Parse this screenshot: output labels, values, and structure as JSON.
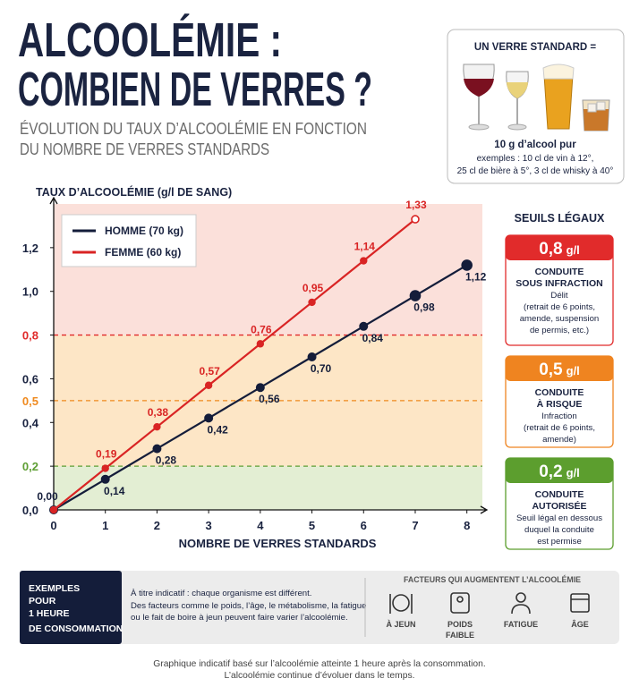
{
  "header": {
    "title_lines": [
      "ALCOOLÉMIE :",
      "COMBIEN DE VERRES ?"
    ],
    "subtitle_lines": [
      "ÉVOLUTION DU TAUX D’ALCOOLÉMIE EN FONCTION",
      "DU NOMBRE DE VERRES STANDARDS"
    ]
  },
  "standard_drink": {
    "title": "UN VERRE STANDARD =",
    "amount": "10 g d’alcool pur",
    "examples": [
      "exemples : 10 cl de vin à 12°,",
      "25 cl de bière à 5°, 3 cl de whisky à 40°"
    ]
  },
  "chart_data": {
    "type": "line",
    "y_label": "TAUX D’ALCOOLÉMIE (g/l DE SANG)",
    "x_label": "NOMBRE DE VERRES STANDARDS",
    "x": [
      0,
      1,
      2,
      3,
      4,
      5,
      6,
      7,
      8
    ],
    "series": [
      {
        "name": "HOMME (70 kg)",
        "color": "#141d3a",
        "values": [
          0,
          0.14,
          0.28,
          0.42,
          0.56,
          0.7,
          0.84,
          0.98,
          1.12
        ],
        "value_labels": [
          "0,00",
          "0,14",
          "0,28",
          "0,42",
          "0,56",
          "0,70",
          "0,84",
          "0,98",
          "1,12"
        ]
      },
      {
        "name": "FEMME (60 kg)",
        "color": "#d92424",
        "values": [
          0,
          0.19,
          0.38,
          0.57,
          0.76,
          0.95,
          1.14,
          1.33,
          null
        ],
        "value_labels": [
          null,
          "0,19",
          "0,38",
          "0,57",
          "0,76",
          "0,95",
          "1,14",
          "1,33",
          null
        ]
      }
    ],
    "xlim": [
      0,
      8.3
    ],
    "xticks": [
      0,
      1,
      2,
      3,
      4,
      5,
      6,
      7,
      8
    ],
    "ylim": [
      0,
      1.4
    ],
    "yticks": [
      {
        "value": 0,
        "label": "0,0"
      },
      {
        "value": 0.2,
        "label": "0,2"
      },
      {
        "value": 0.4,
        "label": "0,4"
      },
      {
        "value": 0.5,
        "label": "0,5"
      },
      {
        "value": 0.6,
        "label": "0,6"
      },
      {
        "value": 0.8,
        "label": "0,8"
      },
      {
        "value": 1.0,
        "label": "1,0"
      },
      {
        "value": 1.2,
        "label": "1,2"
      }
    ],
    "legend": "top-left",
    "thresholds": [
      {
        "value": 0.2,
        "color": "#5e9e34",
        "band": "#e3eed3"
      },
      {
        "value": 0.5,
        "color": "#ef8a1f",
        "band": "#fde6c6"
      },
      {
        "value": 0.8,
        "color": "#e02a2a",
        "band": "#fde6c6"
      }
    ],
    "above_band": "#fbe0da"
  },
  "legal_limits": {
    "title": "SEUILS LÉGAUX",
    "unit": "g/l",
    "levels": [
      {
        "value": "0,8",
        "color": "#e12b2b",
        "heading": [
          "CONDUITE",
          "SOUS INFRACTION"
        ],
        "details": [
          "Délit",
          "(retrait de 6 points,",
          "amende, suspension",
          "de permis, etc.)"
        ]
      },
      {
        "value": "0,5",
        "color": "#ef8420",
        "heading": [
          "CONDUITE",
          "À RISQUE"
        ],
        "details": [
          "Infraction",
          "(retrait de 6 points,",
          "amende)"
        ]
      },
      {
        "value": "0,2",
        "color": "#5c9e2e",
        "heading": [
          "CONDUITE",
          "AUTORISÉE"
        ],
        "details": [
          "Seuil légal en dessous",
          "duquel la conduite",
          "est permise"
        ]
      }
    ]
  },
  "examples": {
    "label_lines": [
      "EXEMPLES",
      "POUR",
      "1 HEURE",
      "DE CONSOMMATION"
    ],
    "text_lines": [
      "À titre indicatif : chaque organisme est différent.",
      "Des facteurs comme le poids, l’âge, le métabolisme, la fatigue",
      "ou le fait de boire à jeun peuvent faire varier l’alcoolémie."
    ]
  },
  "factors": {
    "title": "FACTEURS QUI AUGMENTENT L’ALCOOLÉMIE",
    "items": [
      {
        "label_lines": [
          "À JEUN"
        ]
      },
      {
        "label_lines": [
          "POIDS",
          "FAIBLE"
        ]
      },
      {
        "label_lines": [
          "FATIGUE"
        ]
      },
      {
        "label_lines": [
          "ÂGE"
        ]
      }
    ]
  },
  "footnote": [
    "Graphique indicatif basé sur l’alcoolémie atteinte 1 heure après la consommation.",
    "L’alcoolémie continue d’évoluer dans le temps."
  ]
}
